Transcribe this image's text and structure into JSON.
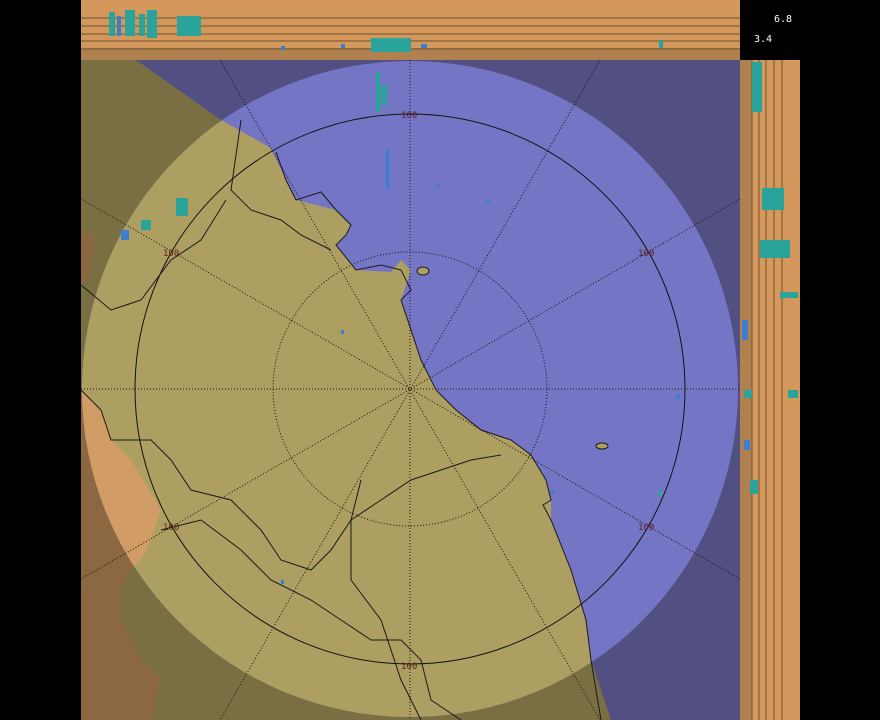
{
  "scale": {
    "max_label": "6.8",
    "min_label": "3.4"
  },
  "range_ring_labels": [
    "100",
    "100",
    "100",
    "100",
    "100",
    "100"
  ],
  "colors": {
    "sea_outside": "#524f82",
    "sea_inside": "#7575c5",
    "land_outside": "#7a6f42",
    "land_inside": "#ad9f62",
    "neighbor_land_outside": "#8b6841",
    "neighbor_land_inside": "#d19c66",
    "profile_band": "#d4975c",
    "echo_strong": "#2aa39a",
    "echo_weak": "#3a7fd0"
  },
  "icons": [
    "radar-range-rings",
    "azimuth-spokes"
  ]
}
